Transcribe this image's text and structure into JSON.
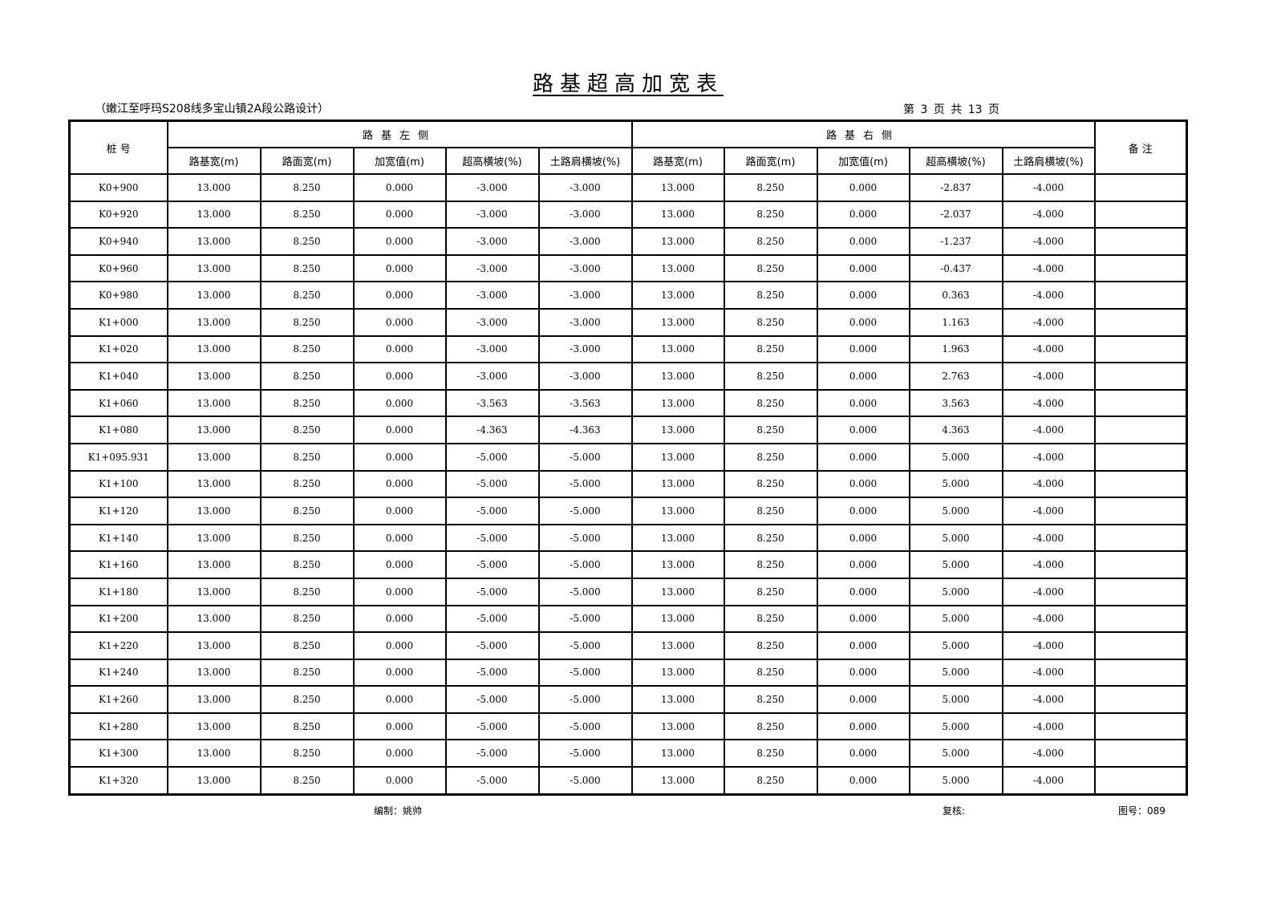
{
  "title": "路基超高加宽表",
  "subtitle": "（嫩江至呼玛S208线多宝山镇2A段公路设计）",
  "page_info": "第 3 页  共 13 页",
  "header": {
    "station": "桩 号",
    "left_group": "路基左侧",
    "right_group": "路基右侧",
    "remarks": "备 注",
    "left_cols": [
      "路基宽(m)",
      "路面宽(m)",
      "加宽值(m)",
      "超高横坡(%)",
      "土路肩横坡(%)"
    ],
    "right_cols": [
      "路基宽(m)",
      "路面宽(m)",
      "加宽值(m)",
      "超高横坡(%)",
      "土路肩横坡(%)"
    ]
  },
  "rows": [
    [
      "K0+900",
      "13.000",
      "8.250",
      "0.000",
      "-3.000",
      "-3.000",
      "13.000",
      "8.250",
      "0.000",
      "-2.837",
      "-4.000",
      ""
    ],
    [
      "K0+920",
      "13.000",
      "8.250",
      "0.000",
      "-3.000",
      "-3.000",
      "13.000",
      "8.250",
      "0.000",
      "-2.037",
      "-4.000",
      ""
    ],
    [
      "K0+940",
      "13.000",
      "8.250",
      "0.000",
      "-3.000",
      "-3.000",
      "13.000",
      "8.250",
      "0.000",
      "-1.237",
      "-4.000",
      ""
    ],
    [
      "K0+960",
      "13.000",
      "8.250",
      "0.000",
      "-3.000",
      "-3.000",
      "13.000",
      "8.250",
      "0.000",
      "-0.437",
      "-4.000",
      ""
    ],
    [
      "K0+980",
      "13.000",
      "8.250",
      "0.000",
      "-3.000",
      "-3.000",
      "13.000",
      "8.250",
      "0.000",
      "0.363",
      "-4.000",
      ""
    ],
    [
      "K1+000",
      "13.000",
      "8.250",
      "0.000",
      "-3.000",
      "-3.000",
      "13.000",
      "8.250",
      "0.000",
      "1.163",
      "-4.000",
      ""
    ],
    [
      "K1+020",
      "13.000",
      "8.250",
      "0.000",
      "-3.000",
      "-3.000",
      "13.000",
      "8.250",
      "0.000",
      "1.963",
      "-4.000",
      ""
    ],
    [
      "K1+040",
      "13.000",
      "8.250",
      "0.000",
      "-3.000",
      "-3.000",
      "13.000",
      "8.250",
      "0.000",
      "2.763",
      "-4.000",
      ""
    ],
    [
      "K1+060",
      "13.000",
      "8.250",
      "0.000",
      "-3.563",
      "-3.563",
      "13.000",
      "8.250",
      "0.000",
      "3.563",
      "-4.000",
      ""
    ],
    [
      "K1+080",
      "13.000",
      "8.250",
      "0.000",
      "-4.363",
      "-4.363",
      "13.000",
      "8.250",
      "0.000",
      "4.363",
      "-4.000",
      ""
    ],
    [
      "K1+095.931",
      "13.000",
      "8.250",
      "0.000",
      "-5.000",
      "-5.000",
      "13.000",
      "8.250",
      "0.000",
      "5.000",
      "-4.000",
      ""
    ],
    [
      "K1+100",
      "13.000",
      "8.250",
      "0.000",
      "-5.000",
      "-5.000",
      "13.000",
      "8.250",
      "0.000",
      "5.000",
      "-4.000",
      ""
    ],
    [
      "K1+120",
      "13.000",
      "8.250",
      "0.000",
      "-5.000",
      "-5.000",
      "13.000",
      "8.250",
      "0.000",
      "5.000",
      "-4.000",
      ""
    ],
    [
      "K1+140",
      "13.000",
      "8.250",
      "0.000",
      "-5.000",
      "-5.000",
      "13.000",
      "8.250",
      "0.000",
      "5.000",
      "-4.000",
      ""
    ],
    [
      "K1+160",
      "13.000",
      "8.250",
      "0.000",
      "-5.000",
      "-5.000",
      "13.000",
      "8.250",
      "0.000",
      "5.000",
      "-4.000",
      ""
    ],
    [
      "K1+180",
      "13.000",
      "8.250",
      "0.000",
      "-5.000",
      "-5.000",
      "13.000",
      "8.250",
      "0.000",
      "5.000",
      "-4.000",
      ""
    ],
    [
      "K1+200",
      "13.000",
      "8.250",
      "0.000",
      "-5.000",
      "-5.000",
      "13.000",
      "8.250",
      "0.000",
      "5.000",
      "-4.000",
      ""
    ],
    [
      "K1+220",
      "13.000",
      "8.250",
      "0.000",
      "-5.000",
      "-5.000",
      "13.000",
      "8.250",
      "0.000",
      "5.000",
      "-4.000",
      ""
    ],
    [
      "K1+240",
      "13.000",
      "8.250",
      "0.000",
      "-5.000",
      "-5.000",
      "13.000",
      "8.250",
      "0.000",
      "5.000",
      "-4.000",
      ""
    ],
    [
      "K1+260",
      "13.000",
      "8.250",
      "0.000",
      "-5.000",
      "-5.000",
      "13.000",
      "8.250",
      "0.000",
      "5.000",
      "-4.000",
      ""
    ],
    [
      "K1+280",
      "13.000",
      "8.250",
      "0.000",
      "-5.000",
      "-5.000",
      "13.000",
      "8.250",
      "0.000",
      "5.000",
      "-4.000",
      ""
    ],
    [
      "K1+300",
      "13.000",
      "8.250",
      "0.000",
      "-5.000",
      "-5.000",
      "13.000",
      "8.250",
      "0.000",
      "5.000",
      "-4.000",
      ""
    ],
    [
      "K1+320",
      "13.000",
      "8.250",
      "0.000",
      "-5.000",
      "-5.000",
      "13.000",
      "8.250",
      "0.000",
      "5.000",
      "-4.000",
      ""
    ]
  ],
  "footer": {
    "compiled_by": "编制：姚帅",
    "reviewed_by": "复核:",
    "drawing_no": "图号：089"
  }
}
